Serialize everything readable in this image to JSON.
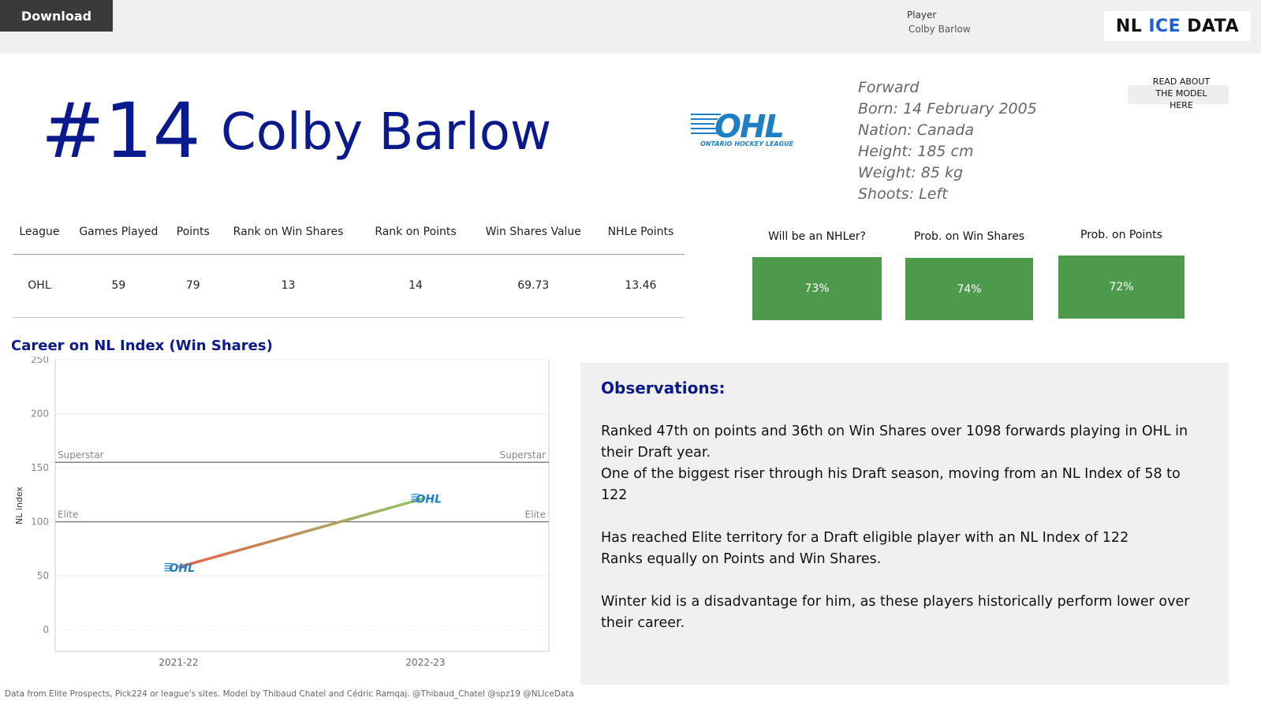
{
  "toolbar": {
    "download_label": "Download"
  },
  "filter": {
    "label": "Player",
    "value": "Colby Barlow"
  },
  "brand": {
    "part1": "NL",
    "part2": "ICE",
    "part3": "DATA"
  },
  "player": {
    "number": "#14",
    "name": "Colby Barlow",
    "bio": [
      "Forward",
      "Born: 14 February 2005",
      "Nation: Canada",
      "Height: 185 cm",
      "Weight: 85 kg",
      "Shoots: Left"
    ]
  },
  "league_logo": {
    "text": "ONTARIO HOCKEY LEAGUE"
  },
  "model_link": {
    "text": "READ ABOUT THE MODEL HERE"
  },
  "stats_table": {
    "headers": [
      "League",
      "Games Played",
      "Points",
      "Rank on Win Shares",
      "Rank on Points",
      "Win Shares Value",
      "NHLe Points"
    ],
    "row": [
      "OHL",
      "59",
      "79",
      "13",
      "14",
      "69.73",
      "13.46"
    ]
  },
  "probabilities": [
    {
      "label": "Will be an NHLer?",
      "value": "73%"
    },
    {
      "label": "Prob. on Win Shares",
      "value": "74%"
    },
    {
      "label": "Prob. on Points",
      "value": "72%"
    }
  ],
  "career_title": "Career on NL Index (Win Shares)",
  "chart_data": {
    "type": "line",
    "title": "Career on NL Index (Win Shares)",
    "ylabel": "NL index",
    "xlabel": "",
    "categories": [
      "2021-22",
      "2022-23"
    ],
    "series": [
      {
        "values": [
          58,
          122
        ]
      }
    ],
    "ylim": [
      -20,
      250
    ],
    "yticks": [
      0,
      50,
      100,
      150,
      200,
      250
    ],
    "reference_lines": [
      {
        "label": "Superstar",
        "value": 155
      },
      {
        "label": "Elite",
        "value": 100
      }
    ],
    "point_marker": "OHL",
    "line_colors": [
      "#e8624a",
      "#8cc86a"
    ],
    "grid": true
  },
  "observations": {
    "title": "Observations:",
    "text": "Ranked 47th on points and 36th on Win Shares over 1098 forwards playing in OHL in their Draft year.\nOne of the biggest riser through his Draft season, moving from an NL Index of 58 to 122\n\nHas reached Elite territory for a Draft eligible player with an NL Index of 122\nRanks equally on Points and Win Shares.\n\n Winter kid is a disadvantage for him, as these players historically perform lower over their career."
  },
  "footer": "Data from Elite Prospects, Pick224 or league's sites. Model by Thibaud Chatel and Cédric Ramqaj. @Thibaud_Chatel @spz19 @NLIceData",
  "colors": {
    "navy": "#0a1a8c",
    "green": "#4d9a4d",
    "ohl_blue": "#1f7fc4"
  }
}
